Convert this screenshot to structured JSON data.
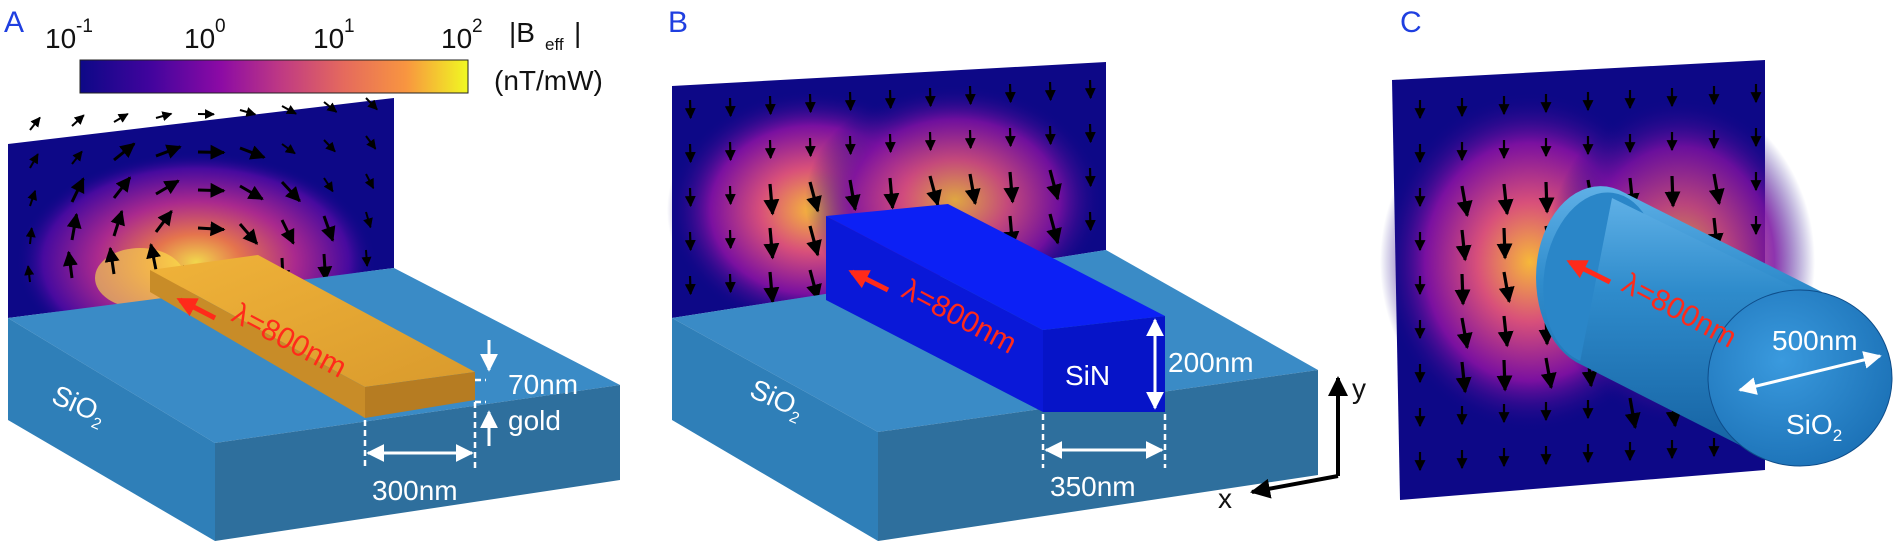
{
  "panels": {
    "a": {
      "letter": "A",
      "wavelength": "λ=800nm",
      "substrate": "SiO",
      "substrate_sub": "2",
      "thickness": "70nm",
      "material": "gold",
      "width": "300nm"
    },
    "b": {
      "letter": "B",
      "wavelength": "λ=800nm",
      "substrate": "SiO",
      "substrate_sub": "2",
      "core": "SiN",
      "height": "200nm",
      "width": "350nm",
      "axis_x": "x",
      "axis_y": "y"
    },
    "c": {
      "letter": "C",
      "wavelength": "λ=800nm",
      "diameter": "500nm",
      "core": "SiO",
      "core_sub": "2"
    }
  },
  "colorbar": {
    "base": "10",
    "exponents": [
      "-1",
      "0",
      "1",
      "2"
    ],
    "label_main": "|B",
    "label_sub": "eff",
    "label_end": "|",
    "unit": "(nT/mW)",
    "scale": "log",
    "colormap": [
      "#0d0887",
      "#5c01a6",
      "#9c179e",
      "#cc4778",
      "#ed7953",
      "#fdb42f",
      "#f0f921"
    ]
  },
  "colors": {
    "substrate_top": "#3a8bc6",
    "substrate_side": "#2e6f9d",
    "gold": "#e0a030",
    "sin": "#0a1ef0",
    "field_bg": "#0d0887",
    "arrow_red": "#ff2a1a"
  },
  "icons": [
    "field-arrow-icon",
    "propagation-arrow-icon",
    "dimension-arrow-icon",
    "axis-arrow-icon"
  ]
}
